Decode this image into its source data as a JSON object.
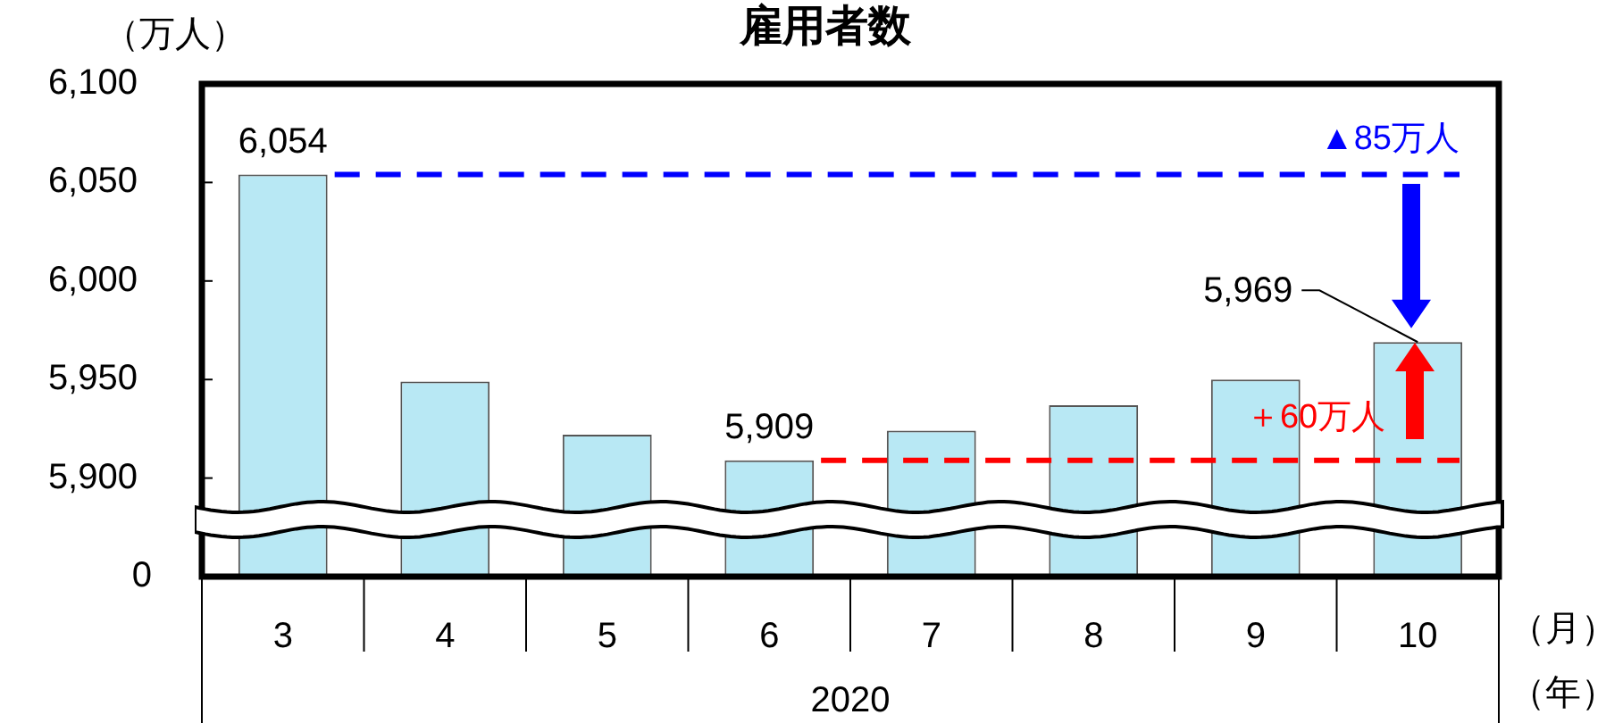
{
  "chart_data": {
    "type": "bar",
    "title": "雇用者数",
    "ylabel": "（万人）",
    "xlabel": "2020",
    "categories": [
      "3",
      "4",
      "5",
      "6",
      "7",
      "8",
      "9",
      "10"
    ],
    "values": [
      6054,
      5949,
      5922,
      5909,
      5924,
      5937,
      5950,
      5969
    ],
    "value_labels": [
      "6,054",
      null,
      null,
      "5,909",
      null,
      null,
      null,
      "5,969"
    ],
    "color": "#b8e8f4",
    "ylim": [
      5850,
      6100
    ],
    "yticks": [
      {
        "value": 5900,
        "label": "5,900"
      },
      {
        "value": 5950,
        "label": "5,950"
      },
      {
        "value": 6000,
        "label": "6,000"
      },
      {
        "value": 6050,
        "label": "6,050"
      },
      {
        "value": 6100,
        "label": "6,100"
      }
    ],
    "ref_lines": [
      {
        "axis": "y",
        "value": 6054,
        "label": "▲85万人",
        "color": "#0000ff",
        "line_style": "dashed"
      },
      {
        "axis": "y",
        "value": 5909,
        "label": "＋60万人",
        "color": "#ff0000",
        "line_style": "dashed"
      }
    ],
    "annotations": [
      "0",
      "（月）",
      "（年）"
    ],
    "grid": false,
    "legend": false
  }
}
